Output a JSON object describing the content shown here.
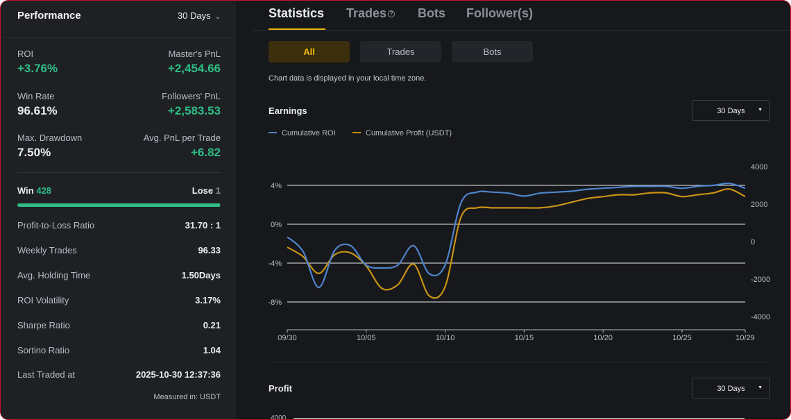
{
  "performance": {
    "title": "Performance",
    "range": "30 Days",
    "roi_label": "ROI",
    "roi_value": "+3.76%",
    "masters_pnl_label": "Master's PnL",
    "masters_pnl_value": "+2,454.66",
    "win_rate_label": "Win Rate",
    "win_rate_value": "96.61%",
    "followers_pnl_label": "Followers' PnL",
    "followers_pnl_value": "+2,583.53",
    "max_drawdown_label": "Max. Drawdown",
    "max_drawdown_value": "7.50%",
    "avg_pnl_label": "Avg. PnL per Trade",
    "avg_pnl_value": "+6.82",
    "win_label": "Win",
    "win_count": "428",
    "lose_label": "Lose",
    "lose_count": "1",
    "win_ratio": 0.9977,
    "rows": [
      {
        "label": "Profit-to-Loss Ratio",
        "value": "31.70 : 1"
      },
      {
        "label": "Weekly Trades",
        "value": "96.33"
      },
      {
        "label": "Avg. Holding Time",
        "value": "1.50Days"
      },
      {
        "label": "ROI Volatility",
        "value": "3.17%"
      },
      {
        "label": "Sharpe Ratio",
        "value": "0.21"
      },
      {
        "label": "Sortino Ratio",
        "value": "1.04"
      },
      {
        "label": "Last Traded at",
        "value": "2025-10-30 12:37:36"
      }
    ],
    "measured": "Measured in: USDT"
  },
  "tabs": [
    {
      "label": "Statistics",
      "active": true
    },
    {
      "label": "Trades",
      "active": false,
      "help": "?"
    },
    {
      "label": "Bots",
      "active": false
    },
    {
      "label": "Follower(s)",
      "active": false
    }
  ],
  "segments": [
    {
      "label": "All",
      "active": true
    },
    {
      "label": "Trades",
      "active": false
    },
    {
      "label": "Bots",
      "active": false
    }
  ],
  "note": "Chart data is displayed in your local time zone.",
  "earnings": {
    "title": "Earnings",
    "range": "30 Days",
    "legend": [
      "Cumulative ROI",
      "Cumulative Profit (USDT)"
    ]
  },
  "profit": {
    "title": "Profit",
    "range": "30 Days",
    "axis_top": "4000"
  },
  "colors": {
    "roi": "#4f83cc",
    "profit": "#c99316",
    "accent": "#f0b90b",
    "green": "#2ebd85"
  },
  "chart_data": {
    "type": "line",
    "title": "Earnings",
    "xlabel": "",
    "ylabel": "",
    "x": [
      "09/30",
      "10/01",
      "10/02",
      "10/03",
      "10/04",
      "10/05",
      "10/06",
      "10/07",
      "10/08",
      "10/09",
      "10/10",
      "10/11",
      "10/12",
      "10/13",
      "10/14",
      "10/15",
      "10/16",
      "10/17",
      "10/18",
      "10/19",
      "10/20",
      "10/21",
      "10/22",
      "10/23",
      "10/24",
      "10/25",
      "10/26",
      "10/27",
      "10/28",
      "10/29"
    ],
    "x_ticks": [
      "09/30",
      "10/05",
      "10/10",
      "10/15",
      "10/20",
      "10/25",
      "10/29"
    ],
    "y_left_ticks": [
      "4%",
      "0%",
      "-4%",
      "-8%"
    ],
    "y_left_range": [
      -10,
      6
    ],
    "y_right_ticks": [
      "4000",
      "2000",
      "0",
      "-2000",
      "-4000"
    ],
    "y_right_range": [
      -4000,
      4000
    ],
    "series": [
      {
        "name": "Cumulative ROI",
        "axis": "left",
        "color": "#4f83cc",
        "values": [
          -1.3,
          -2.8,
          -6.5,
          -2.7,
          -2.2,
          -4.2,
          -4.5,
          -4.2,
          -2.2,
          -5.1,
          -4.2,
          2.2,
          3.3,
          3.3,
          3.2,
          2.9,
          3.2,
          3.3,
          3.4,
          3.6,
          3.7,
          3.8,
          3.9,
          3.9,
          3.9,
          3.7,
          3.9,
          4.0,
          4.2,
          3.7
        ]
      },
      {
        "name": "Cumulative Profit (USDT)",
        "axis": "right",
        "color": "#c99316",
        "values": [
          -300,
          -800,
          -1700,
          -700,
          -600,
          -1300,
          -2500,
          -2300,
          -1200,
          -2900,
          -2400,
          1300,
          1800,
          1800,
          1800,
          1800,
          1800,
          1900,
          2100,
          2300,
          2400,
          2500,
          2500,
          2600,
          2600,
          2400,
          2500,
          2600,
          2800,
          2400
        ]
      }
    ]
  }
}
